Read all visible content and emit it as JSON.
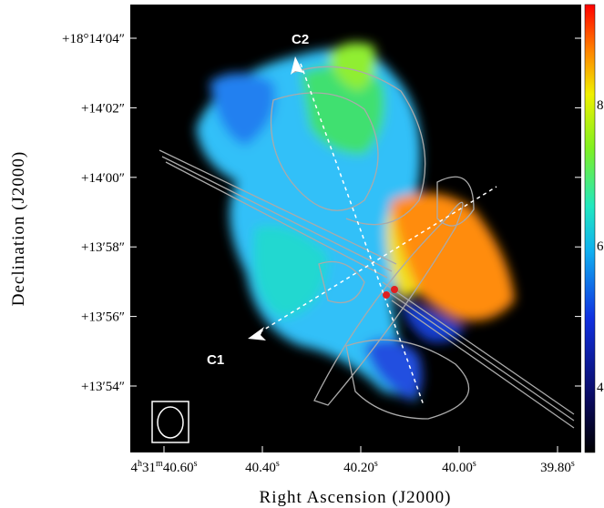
{
  "figure": {
    "x_label": "Right Ascension (J2000)",
    "y_label": "Declination (J2000)",
    "x_ticks": [
      [
        "4",
        "h",
        "31",
        "m",
        "40.60",
        "s"
      ],
      [
        "40.40",
        "s"
      ],
      [
        "40.20",
        "s"
      ],
      [
        "40.00",
        "s"
      ],
      [
        "39.80",
        "s"
      ]
    ],
    "y_ticks": [
      "+18°14′04″",
      "+14′02″",
      "+14′00″",
      "+13′58″",
      "+13′56″",
      "+13′54″"
    ],
    "annotations": [
      "C2",
      "C1"
    ],
    "colorbar_ticks": [
      "8",
      "6",
      "4"
    ]
  }
}
